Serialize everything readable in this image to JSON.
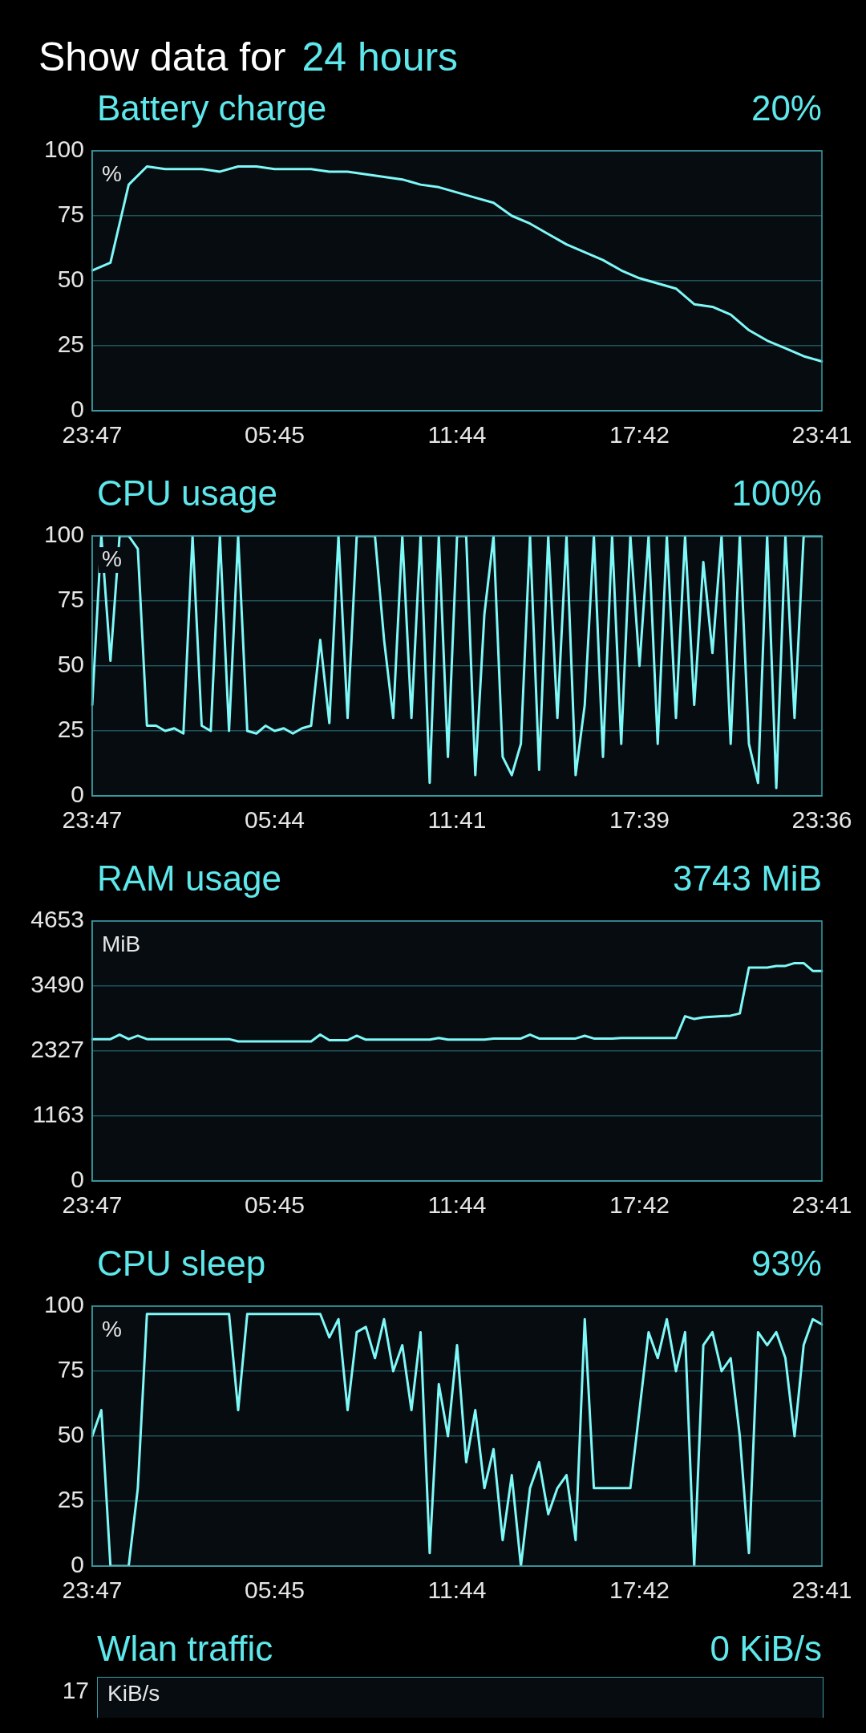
{
  "chart_data": [
    {
      "type": "other",
      "title": "Show data for",
      "subtitle": "24 hours"
    },
    {
      "type": "line",
      "title": "Battery charge",
      "subtitle": "20%",
      "ylabel": "%",
      "color": "#7ff8f8",
      "marker": "none",
      "grid": "y",
      "categories": [
        "23:47",
        null,
        null,
        null,
        null,
        null,
        null,
        null,
        null,
        null,
        "05:45",
        null,
        null,
        null,
        null,
        null,
        null,
        null,
        null,
        null,
        "11:44",
        null,
        null,
        null,
        null,
        null,
        null,
        null,
        null,
        null,
        "17:42",
        null,
        null,
        null,
        null,
        null,
        null,
        null,
        null,
        null,
        "23:41"
      ],
      "values": [
        54,
        57,
        87,
        94,
        93,
        93,
        93,
        92,
        94,
        94,
        93,
        93,
        93,
        92,
        92,
        91,
        90,
        89,
        87,
        86,
        84,
        82,
        80,
        75,
        72,
        68,
        64,
        61,
        58,
        54,
        51,
        49,
        47,
        41,
        40,
        37,
        31,
        27,
        24,
        21,
        19
      ],
      "ylim": [
        0,
        100
      ],
      "yticks": [
        0,
        25,
        50,
        75,
        100
      ]
    },
    {
      "type": "line",
      "title": "CPU usage",
      "subtitle": "100%",
      "ylabel": "%",
      "color": "#7ff8f8",
      "marker": "none",
      "grid": "y",
      "categories": [
        "23:47",
        null,
        null,
        null,
        null,
        null,
        null,
        null,
        null,
        null,
        null,
        null,
        null,
        null,
        null,
        null,
        null,
        null,
        null,
        null,
        "05:44",
        null,
        null,
        null,
        null,
        null,
        null,
        null,
        null,
        null,
        null,
        null,
        null,
        null,
        null,
        null,
        null,
        null,
        null,
        null,
        "11:41",
        null,
        null,
        null,
        null,
        null,
        null,
        null,
        null,
        null,
        null,
        null,
        null,
        null,
        null,
        null,
        null,
        null,
        null,
        null,
        "17:39",
        null,
        null,
        null,
        null,
        null,
        null,
        null,
        null,
        null,
        null,
        null,
        null,
        null,
        null,
        null,
        null,
        null,
        null,
        null,
        "23:36"
      ],
      "values": [
        35,
        100,
        52,
        100,
        100,
        95,
        27,
        27,
        25,
        26,
        24,
        100,
        27,
        25,
        100,
        25,
        100,
        25,
        24,
        27,
        25,
        26,
        24,
        26,
        27,
        60,
        28,
        100,
        30,
        100,
        100,
        100,
        60,
        30,
        100,
        30,
        100,
        5,
        100,
        15,
        100,
        100,
        8,
        70,
        100,
        15,
        8,
        20,
        100,
        10,
        100,
        30,
        100,
        8,
        35,
        100,
        15,
        100,
        20,
        100,
        50,
        100,
        20,
        100,
        30,
        100,
        35,
        90,
        55,
        100,
        20,
        100,
        20,
        5,
        100,
        3,
        100,
        30,
        100,
        100,
        100
      ],
      "ylim": [
        0,
        100
      ],
      "yticks": [
        0,
        25,
        50,
        75,
        100
      ]
    },
    {
      "type": "line",
      "title": "RAM usage",
      "subtitle": "3743 MiB",
      "ylabel": "MiB",
      "color": "#7ff8f8",
      "marker": "none",
      "grid": "y",
      "categories": [
        "23:47",
        null,
        null,
        null,
        null,
        null,
        null,
        null,
        null,
        null,
        null,
        null,
        null,
        null,
        null,
        null,
        null,
        null,
        null,
        null,
        "05:45",
        null,
        null,
        null,
        null,
        null,
        null,
        null,
        null,
        null,
        null,
        null,
        null,
        null,
        null,
        null,
        null,
        null,
        null,
        null,
        "11:44",
        null,
        null,
        null,
        null,
        null,
        null,
        null,
        null,
        null,
        null,
        null,
        null,
        null,
        null,
        null,
        null,
        null,
        null,
        null,
        "17:42",
        null,
        null,
        null,
        null,
        null,
        null,
        null,
        null,
        null,
        null,
        null,
        null,
        null,
        null,
        null,
        null,
        null,
        null,
        null,
        "23:41"
      ],
      "values": [
        2540,
        2540,
        2540,
        2620,
        2540,
        2600,
        2540,
        2540,
        2540,
        2540,
        2540,
        2540,
        2540,
        2540,
        2540,
        2540,
        2500,
        2500,
        2500,
        2500,
        2500,
        2500,
        2500,
        2500,
        2500,
        2620,
        2520,
        2520,
        2520,
        2600,
        2530,
        2530,
        2530,
        2530,
        2530,
        2530,
        2530,
        2530,
        2560,
        2530,
        2530,
        2530,
        2530,
        2530,
        2550,
        2550,
        2550,
        2550,
        2620,
        2550,
        2550,
        2550,
        2550,
        2550,
        2600,
        2550,
        2550,
        2550,
        2560,
        2560,
        2560,
        2560,
        2560,
        2560,
        2560,
        2950,
        2900,
        2930,
        2940,
        2950,
        2960,
        3000,
        3820,
        3820,
        3820,
        3850,
        3850,
        3900,
        3900,
        3760,
        3760
      ],
      "ylim": [
        0,
        4653
      ],
      "yticks": [
        0,
        1163,
        2327,
        3490,
        4653
      ]
    },
    {
      "type": "line",
      "title": "CPU sleep",
      "subtitle": "93%",
      "ylabel": "%",
      "color": "#7ff8f8",
      "marker": "none",
      "grid": "y",
      "categories": [
        "23:47",
        null,
        null,
        null,
        null,
        null,
        null,
        null,
        null,
        null,
        null,
        null,
        null,
        null,
        null,
        null,
        null,
        null,
        null,
        null,
        "05:45",
        null,
        null,
        null,
        null,
        null,
        null,
        null,
        null,
        null,
        null,
        null,
        null,
        null,
        null,
        null,
        null,
        null,
        null,
        null,
        "11:44",
        null,
        null,
        null,
        null,
        null,
        null,
        null,
        null,
        null,
        null,
        null,
        null,
        null,
        null,
        null,
        null,
        null,
        null,
        null,
        "17:42",
        null,
        null,
        null,
        null,
        null,
        null,
        null,
        null,
        null,
        null,
        null,
        null,
        null,
        null,
        null,
        null,
        null,
        null,
        null,
        "23:41"
      ],
      "values": [
        50,
        60,
        0,
        0,
        0,
        30,
        97,
        97,
        97,
        97,
        97,
        97,
        97,
        97,
        97,
        97,
        60,
        97,
        97,
        97,
        97,
        97,
        97,
        97,
        97,
        97,
        88,
        95,
        60,
        90,
        92,
        80,
        95,
        75,
        85,
        60,
        90,
        5,
        70,
        50,
        85,
        40,
        60,
        30,
        45,
        10,
        35,
        0,
        30,
        40,
        20,
        30,
        35,
        10,
        95,
        30,
        30,
        30,
        30,
        30,
        60,
        90,
        80,
        95,
        75,
        90,
        0,
        85,
        90,
        75,
        80,
        50,
        5,
        90,
        85,
        90,
        80,
        50,
        85,
        95,
        93
      ],
      "ylim": [
        0,
        100
      ],
      "yticks": [
        0,
        25,
        50,
        75,
        100
      ]
    },
    {
      "type": "other",
      "title": "Wlan traffic",
      "subtitle": "0 KiB/s",
      "ylabel": "KiB/s",
      "annotations": [
        "17"
      ]
    }
  ]
}
